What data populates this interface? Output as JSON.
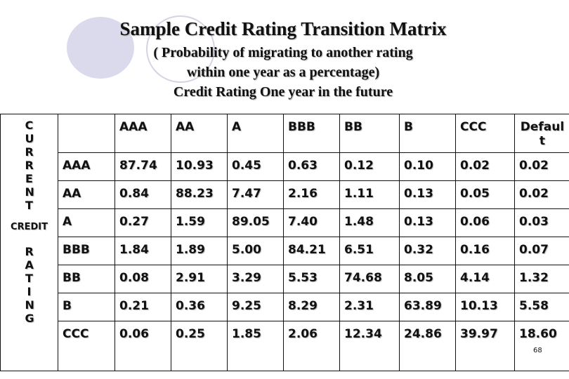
{
  "title": "Sample Credit Rating Transition Matrix",
  "subtitle_lines": [
    "( Probability of migrating to another rating",
    "within one year as a percentage)",
    "Credit Rating One year in the future"
  ],
  "side_label": {
    "top": "CURRENT",
    "middle": "CREDIT",
    "bottom": "RATING"
  },
  "columns": [
    "AAA",
    "AA",
    "A",
    "BBB",
    "BB",
    "B",
    "CCC",
    "Default"
  ],
  "default_header_lines": [
    "Defaul",
    "t"
  ],
  "rows": [
    {
      "label": "AAA",
      "values": [
        "87.74",
        "10.93",
        "0.45",
        "0.63",
        "0.12",
        "0.10",
        "0.02",
        "0.02"
      ]
    },
    {
      "label": "AA",
      "values": [
        "0.84",
        "88.23",
        "7.47",
        "2.16",
        "1.11",
        "0.13",
        "0.05",
        "0.02"
      ]
    },
    {
      "label": "A",
      "values": [
        "0.27",
        "1.59",
        "89.05",
        "7.40",
        "1.48",
        "0.13",
        "0.06",
        "0.03"
      ]
    },
    {
      "label": "BBB",
      "values": [
        "1.84",
        "1.89",
        "5.00",
        "84.21",
        "6.51",
        "0.32",
        "0.16",
        "0.07"
      ]
    },
    {
      "label": "BB",
      "values": [
        "0.08",
        "2.91",
        "3.29",
        "5.53",
        "74.68",
        "8.05",
        "4.14",
        "1.32"
      ]
    },
    {
      "label": "B",
      "values": [
        "0.21",
        "0.36",
        "9.25",
        "8.29",
        "2.31",
        "63.89",
        "10.13",
        "5.58"
      ]
    },
    {
      "label": "CCC",
      "values": [
        "0.06",
        "0.25",
        "1.85",
        "2.06",
        "12.34",
        "24.86",
        "39.97",
        "18.60"
      ]
    }
  ],
  "page_number": "68",
  "colors": {
    "circle_fill": "#dadaec",
    "circle_outline": "#d4d4e4",
    "text": "#111111"
  }
}
